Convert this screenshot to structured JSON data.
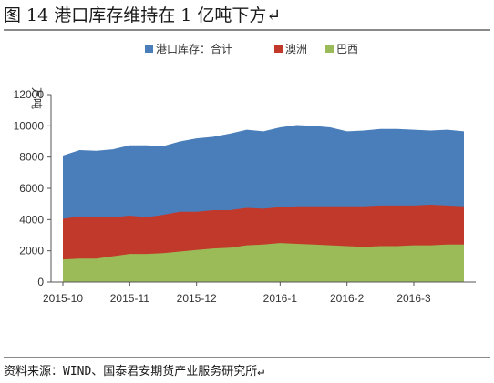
{
  "title": "图 14 港口库存维持在 1 亿吨下方↵",
  "source": "资料来源：WIND、国泰君安期货产业服务研究所↵",
  "chart_data": {
    "type": "area",
    "stacked": true,
    "ylabel": "万吨",
    "ylim": [
      0,
      12000
    ],
    "yticks": [
      0,
      2000,
      4000,
      6000,
      8000,
      10000,
      12000
    ],
    "x_tick_labels": [
      "2015-10",
      "2015-11",
      "2015-12",
      "2016-1",
      "2016-2",
      "2016-3"
    ],
    "legend_position": "top",
    "grid": false,
    "x": [
      "2015-10-09",
      "2015-10-16",
      "2015-10-23",
      "2015-10-30",
      "2015-11-06",
      "2015-11-13",
      "2015-11-20",
      "2015-11-27",
      "2015-12-04",
      "2015-12-11",
      "2015-12-18",
      "2015-12-25",
      "2016-01-01",
      "2016-01-08",
      "2016-01-15",
      "2016-01-22",
      "2016-01-29",
      "2016-02-05",
      "2016-02-12",
      "2016-02-19",
      "2016-02-26",
      "2016-03-04",
      "2016-03-11",
      "2016-03-18",
      "2016-03-25"
    ],
    "total_label": "港口库存：合计",
    "total_color": "#4a7ebb",
    "total": [
      8100,
      8450,
      8400,
      8500,
      8750,
      8750,
      8700,
      9000,
      9200,
      9300,
      9500,
      9750,
      9650,
      9900,
      10050,
      10000,
      9900,
      9650,
      9700,
      9800,
      9800,
      9750,
      9700,
      9750,
      9650
    ],
    "series": [
      {
        "name": "澳洲",
        "color": "#c0392b",
        "values": [
          2600,
          2700,
          2650,
          2500,
          2450,
          2350,
          2450,
          2550,
          2450,
          2450,
          2400,
          2400,
          2300,
          2300,
          2400,
          2450,
          2500,
          2550,
          2600,
          2600,
          2600,
          2550,
          2600,
          2500,
          2450
        ]
      },
      {
        "name": "巴西",
        "color": "#9bbb59",
        "values": [
          1450,
          1500,
          1500,
          1650,
          1800,
          1800,
          1850,
          1950,
          2050,
          2150,
          2200,
          2350,
          2400,
          2500,
          2450,
          2400,
          2350,
          2300,
          2250,
          2300,
          2300,
          2350,
          2350,
          2400,
          2400
        ]
      }
    ]
  }
}
